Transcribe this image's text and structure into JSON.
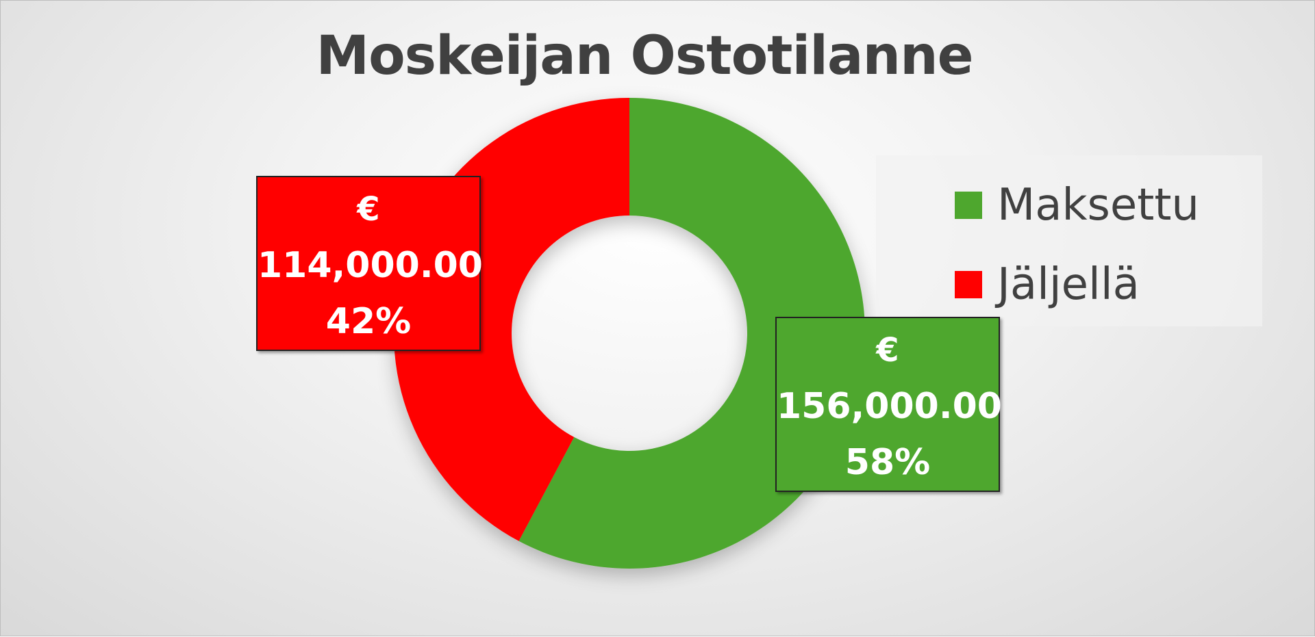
{
  "chart_data": {
    "type": "pie",
    "variant": "doughnut",
    "title": "Moskeijan Ostotilanne",
    "categories": [
      "Maksettu",
      "Jäljellä"
    ],
    "values": [
      156000.0,
      114000.0
    ],
    "percentages": [
      "58%",
      "42%"
    ],
    "value_labels": [
      "156,000.00",
      "114,000.00"
    ],
    "currency_symbol": "€",
    "colors": [
      "#4EA72E",
      "#FF0000"
    ],
    "legend": {
      "position": "right",
      "entries": [
        "Maksettu",
        "Jäljellä"
      ]
    }
  }
}
